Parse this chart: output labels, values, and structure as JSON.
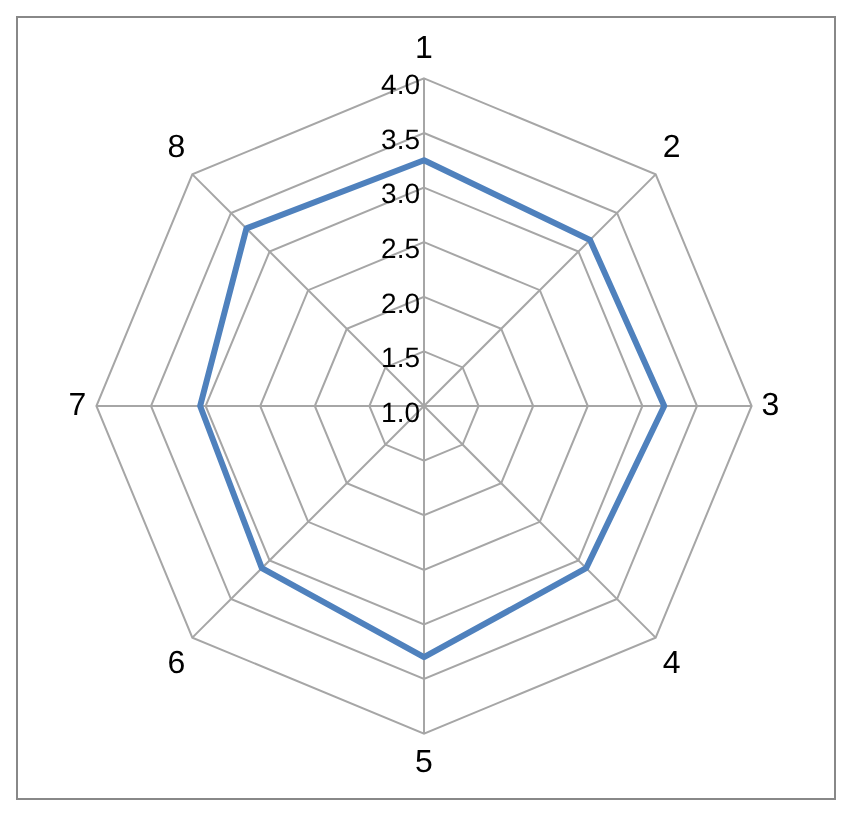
{
  "chart_data": {
    "type": "radar",
    "categories": [
      "1",
      "2",
      "3",
      "4",
      "5",
      "6",
      "7",
      "8"
    ],
    "series": [
      {
        "color": "#4f81bd",
        "values": [
          3.25,
          3.15,
          3.2,
          3.1,
          3.3,
          3.1,
          3.05,
          3.3
        ]
      }
    ],
    "ylim": [
      1,
      4
    ],
    "yticks": [
      {
        "value": 1,
        "label": "1.0"
      },
      1.5,
      {
        "value": 2,
        "label": "2.0"
      },
      2.5,
      {
        "value": 3,
        "label": "3.0"
      },
      3.5,
      {
        "value": 4,
        "label": "4.0"
      }
    ],
    "grid": true,
    "legend": false,
    "marker": "none"
  }
}
